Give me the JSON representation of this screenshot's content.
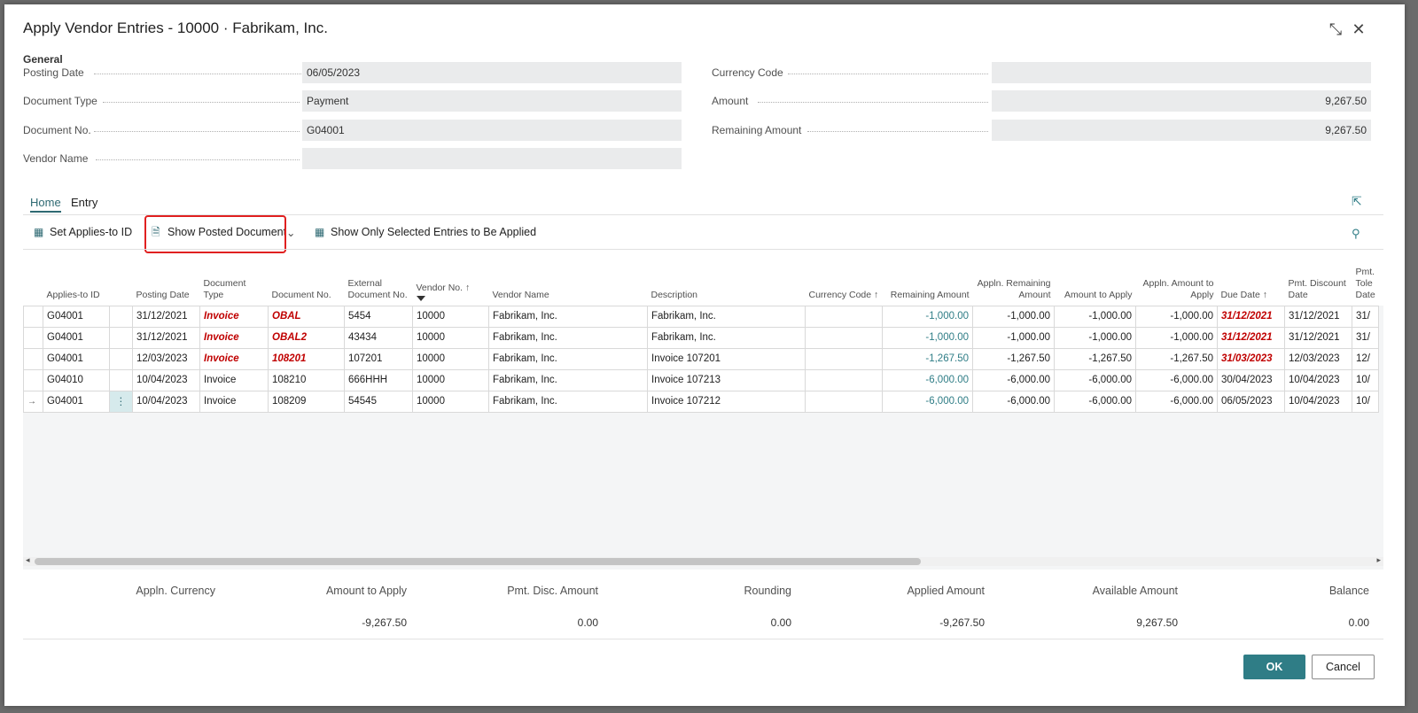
{
  "title": "Apply Vendor Entries - 10000 · Fabrikam, Inc.",
  "general": {
    "section_label": "General",
    "posting_date_label": "Posting Date",
    "posting_date": "06/05/2023",
    "document_type_label": "Document Type",
    "document_type": "Payment",
    "document_no_label": "Document No.",
    "document_no": "G04001",
    "vendor_name_label": "Vendor Name",
    "vendor_name": "",
    "currency_code_label": "Currency Code",
    "currency_code": "",
    "amount_label": "Amount",
    "amount": "9,267.50",
    "remaining_amount_label": "Remaining Amount",
    "remaining_amount": "9,267.50"
  },
  "tabs": [
    "Home",
    "Entry"
  ],
  "toolbar": {
    "set_applies_to_id": "Set Applies-to ID",
    "show_posted_document": "Show Posted Document",
    "show_only_selected": "Show Only Selected Entries to Be Applied"
  },
  "columns": {
    "applies_to_id": "Applies-to ID",
    "posting_date": "Posting Date",
    "document_type": "Document Type",
    "document_no": "Document No.",
    "external_document_no": "External Document No.",
    "vendor_no": "Vendor No. ↑",
    "vendor_name": "Vendor Name",
    "description": "Description",
    "currency_code": "Currency Code ↑",
    "remaining_amount": "Remaining Amount",
    "appln_remaining_amount": "Appln. Remaining Amount",
    "amount_to_apply": "Amount to Apply",
    "appln_amount_to_apply": "Appln. Amount to Apply",
    "due_date": "Due Date ↑",
    "pmt_discount_date": "Pmt. Discount Date",
    "pmt_tolerance_date": "Pmt. Tole Date"
  },
  "rows": [
    {
      "applies_to_id": "G04001",
      "posting_date": "31/12/2021",
      "document_type": "Invoice",
      "document_no": "OBAL",
      "external_document_no": "5454",
      "vendor_no": "10000",
      "vendor_name": "Fabrikam, Inc.",
      "description": "Fabrikam, Inc.",
      "currency_code": "",
      "remaining_amount": "-1,000.00",
      "appln_remaining_amount": "-1,000.00",
      "amount_to_apply": "-1,000.00",
      "appln_amount_to_apply": "-1,000.00",
      "due_date": "31/12/2021",
      "pmt_discount_date": "31/12/2021",
      "pmt_tolerance_date": "31/",
      "overdue": true
    },
    {
      "applies_to_id": "G04001",
      "posting_date": "31/12/2021",
      "document_type": "Invoice",
      "document_no": "OBAL2",
      "external_document_no": "43434",
      "vendor_no": "10000",
      "vendor_name": "Fabrikam, Inc.",
      "description": "Fabrikam, Inc.",
      "currency_code": "",
      "remaining_amount": "-1,000.00",
      "appln_remaining_amount": "-1,000.00",
      "amount_to_apply": "-1,000.00",
      "appln_amount_to_apply": "-1,000.00",
      "due_date": "31/12/2021",
      "pmt_discount_date": "31/12/2021",
      "pmt_tolerance_date": "31/",
      "overdue": true
    },
    {
      "applies_to_id": "G04001",
      "posting_date": "12/03/2023",
      "document_type": "Invoice",
      "document_no": "108201",
      "external_document_no": "107201",
      "vendor_no": "10000",
      "vendor_name": "Fabrikam, Inc.",
      "description": "Invoice 107201",
      "currency_code": "",
      "remaining_amount": "-1,267.50",
      "appln_remaining_amount": "-1,267.50",
      "amount_to_apply": "-1,267.50",
      "appln_amount_to_apply": "-1,267.50",
      "due_date": "31/03/2023",
      "pmt_discount_date": "12/03/2023",
      "pmt_tolerance_date": "12/",
      "overdue": true
    },
    {
      "applies_to_id": "G04010",
      "posting_date": "10/04/2023",
      "document_type": "Invoice",
      "document_no": "108210",
      "external_document_no": "666HHH",
      "vendor_no": "10000",
      "vendor_name": "Fabrikam, Inc.",
      "description": "Invoice 107213",
      "currency_code": "",
      "remaining_amount": "-6,000.00",
      "appln_remaining_amount": "-6,000.00",
      "amount_to_apply": "-6,000.00",
      "appln_amount_to_apply": "-6,000.00",
      "due_date": "30/04/2023",
      "pmt_discount_date": "10/04/2023",
      "pmt_tolerance_date": "10/",
      "overdue": false
    },
    {
      "applies_to_id": "G04001",
      "posting_date": "10/04/2023",
      "document_type": "Invoice",
      "document_no": "108209",
      "external_document_no": "54545",
      "vendor_no": "10000",
      "vendor_name": "Fabrikam, Inc.",
      "description": "Invoice 107212",
      "currency_code": "",
      "remaining_amount": "-6,000.00",
      "appln_remaining_amount": "-6,000.00",
      "amount_to_apply": "-6,000.00",
      "appln_amount_to_apply": "-6,000.00",
      "due_date": "06/05/2023",
      "pmt_discount_date": "10/04/2023",
      "pmt_tolerance_date": "10/",
      "overdue": false,
      "current": true
    }
  ],
  "totals": {
    "appln_currency_label": "Appln. Currency",
    "amount_to_apply_label": "Amount to Apply",
    "amount_to_apply": "-9,267.50",
    "pmt_disc_amount_label": "Pmt. Disc. Amount",
    "pmt_disc_amount": "0.00",
    "rounding_label": "Rounding",
    "rounding": "0.00",
    "applied_amount_label": "Applied Amount",
    "applied_amount": "-9,267.50",
    "available_amount_label": "Available Amount",
    "available_amount": "9,267.50",
    "balance_label": "Balance",
    "balance": "0.00"
  },
  "buttons": {
    "ok": "OK",
    "cancel": "Cancel"
  },
  "colors": {
    "accent": "#2f7d86",
    "overdue": "#c00000",
    "highlight_box": "#e02020"
  }
}
